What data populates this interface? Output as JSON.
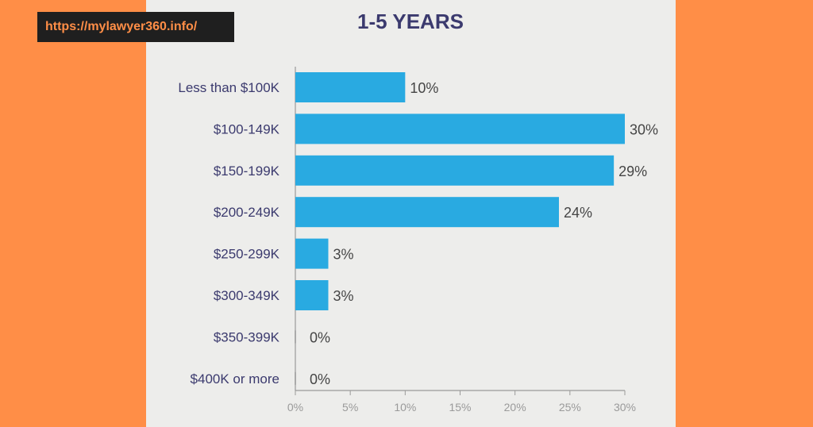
{
  "site": {
    "url": "https://mylawyer360.info/"
  },
  "colors": {
    "background": "#ff8e47",
    "panel": "#ededeb",
    "bar": "#29aae1",
    "title": "#3b3a6e"
  },
  "chart_data": {
    "type": "bar",
    "orientation": "horizontal",
    "title": "1-5 YEARS",
    "categories": [
      "Less than $100K",
      "$100-149K",
      "$150-199K",
      "$200-249K",
      "$250-299K",
      "$300-349K",
      "$350-399K",
      "$400K or more"
    ],
    "values": [
      10,
      30,
      29,
      24,
      3,
      3,
      0,
      0
    ],
    "value_labels": [
      "10%",
      "30%",
      "29%",
      "24%",
      "3%",
      "3%",
      "0%",
      "0%"
    ],
    "xlim": [
      0,
      30
    ],
    "x_ticks": [
      0,
      5,
      10,
      15,
      20,
      25,
      30
    ],
    "x_tick_labels": [
      "0%",
      "5%",
      "10%",
      "15%",
      "20%",
      "25%",
      "30%"
    ],
    "grid": false,
    "legend": "none"
  }
}
